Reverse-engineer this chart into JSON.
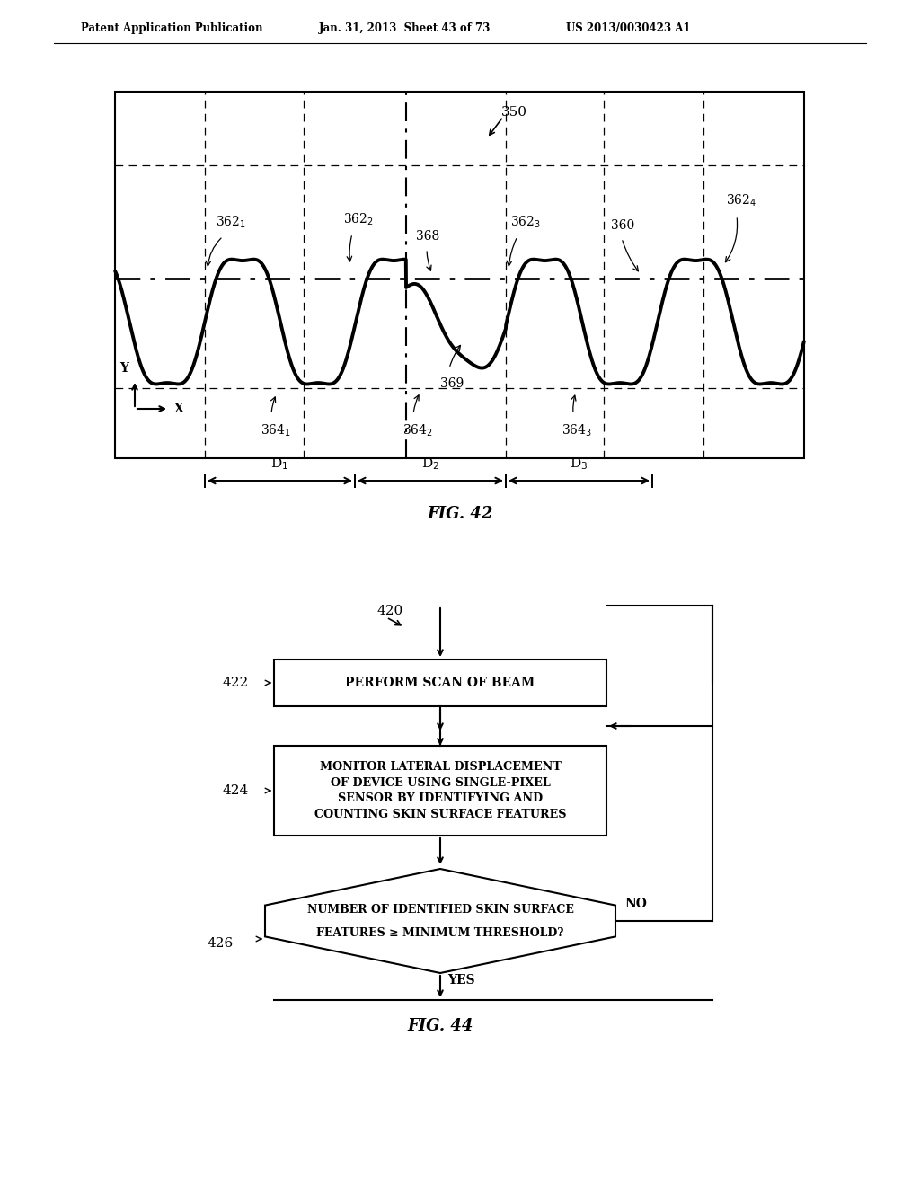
{
  "background_color": "#ffffff",
  "header_left": "Patent Application Publication",
  "header_center": "Jan. 31, 2013  Sheet 43 of 73",
  "header_right": "US 2013/0030423 A1",
  "fig42_title": "FIG. 42",
  "fig44_title": "FIG. 44",
  "fig42_label": "350",
  "flowchart_label": "420",
  "box1_label": "422",
  "box1_text": "PERFORM SCAN OF BEAM",
  "box2_label": "424",
  "box2_text": "MONITOR LATERAL DISPLACEMENT\nOF DEVICE USING SINGLE-PIXEL\nSENSOR BY IDENTIFYING AND\nCOUNTING SKIN SURFACE FEATURES",
  "diamond_label": "426",
  "diamond_text_line1": "NUMBER OF IDENTIFIED SKIN SURFACE",
  "diamond_text_line2": "FEATURES ≥ MINIMUM THRESHOLD?",
  "diamond_yes": "YES",
  "diamond_no": "NO"
}
